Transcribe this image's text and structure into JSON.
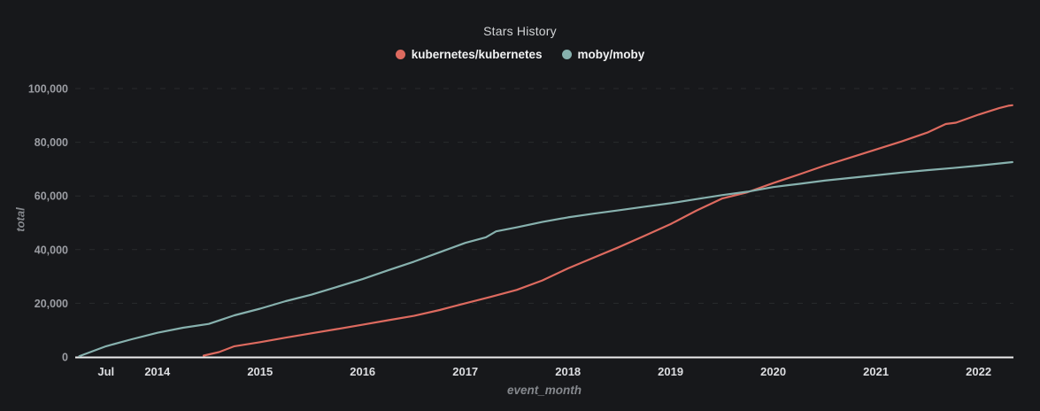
{
  "chart_data": {
    "type": "line",
    "title": "Stars History",
    "xlabel": "event_month",
    "ylabel": "total",
    "legend_position": "top",
    "grid": "horizontal-dashed",
    "x_unit": "decimal_year",
    "xlim": [
      2013.2,
      2022.34
    ],
    "ylim": [
      0,
      100000
    ],
    "x_ticks": [
      {
        "x": 2013.5,
        "label": "Jul"
      },
      {
        "x": 2014,
        "label": "2014"
      },
      {
        "x": 2015,
        "label": "2015"
      },
      {
        "x": 2016,
        "label": "2016"
      },
      {
        "x": 2017,
        "label": "2017"
      },
      {
        "x": 2018,
        "label": "2018"
      },
      {
        "x": 2019,
        "label": "2019"
      },
      {
        "x": 2020,
        "label": "2020"
      },
      {
        "x": 2021,
        "label": "2021"
      },
      {
        "x": 2022,
        "label": "2022"
      }
    ],
    "y_ticks": [
      {
        "v": 0,
        "label": "0"
      },
      {
        "v": 20000,
        "label": "20,000"
      },
      {
        "v": 40000,
        "label": "40,000"
      },
      {
        "v": 60000,
        "label": "60,000"
      },
      {
        "v": 80000,
        "label": "80,000"
      },
      {
        "v": 100000,
        "label": "100,000"
      }
    ],
    "series": [
      {
        "name": "kubernetes/kubernetes",
        "color": "#dd6a5f",
        "points": [
          [
            2014.45,
            500
          ],
          [
            2014.6,
            1800
          ],
          [
            2014.75,
            4000
          ],
          [
            2015.0,
            5500
          ],
          [
            2015.25,
            7200
          ],
          [
            2015.5,
            8800
          ],
          [
            2015.75,
            10400
          ],
          [
            2016.0,
            12000
          ],
          [
            2016.25,
            13700
          ],
          [
            2016.5,
            15300
          ],
          [
            2016.75,
            17500
          ],
          [
            2017.0,
            20000
          ],
          [
            2017.25,
            22400
          ],
          [
            2017.5,
            25000
          ],
          [
            2017.75,
            28500
          ],
          [
            2018.0,
            33000
          ],
          [
            2018.25,
            37000
          ],
          [
            2018.5,
            41000
          ],
          [
            2018.75,
            45200
          ],
          [
            2019.0,
            49500
          ],
          [
            2019.25,
            54500
          ],
          [
            2019.5,
            59000
          ],
          [
            2019.75,
            61400
          ],
          [
            2020.0,
            64800
          ],
          [
            2020.25,
            68000
          ],
          [
            2020.5,
            71300
          ],
          [
            2020.75,
            74300
          ],
          [
            2021.0,
            77300
          ],
          [
            2021.25,
            80300
          ],
          [
            2021.5,
            83600
          ],
          [
            2021.68,
            86800
          ],
          [
            2021.78,
            87300
          ],
          [
            2022.0,
            90300
          ],
          [
            2022.2,
            92700
          ],
          [
            2022.29,
            93600
          ],
          [
            2022.33,
            93800
          ]
        ]
      },
      {
        "name": "moby/moby",
        "color": "#87b1ae",
        "points": [
          [
            2013.24,
            300
          ],
          [
            2013.5,
            4000
          ],
          [
            2013.75,
            6600
          ],
          [
            2014.0,
            9000
          ],
          [
            2014.25,
            10900
          ],
          [
            2014.5,
            12300
          ],
          [
            2014.75,
            15500
          ],
          [
            2015.0,
            18000
          ],
          [
            2015.25,
            20800
          ],
          [
            2015.5,
            23200
          ],
          [
            2015.75,
            26100
          ],
          [
            2016.0,
            29000
          ],
          [
            2016.25,
            32300
          ],
          [
            2016.5,
            35500
          ],
          [
            2016.75,
            39000
          ],
          [
            2017.0,
            42500
          ],
          [
            2017.2,
            44600
          ],
          [
            2017.3,
            46800
          ],
          [
            2017.5,
            48300
          ],
          [
            2017.75,
            50300
          ],
          [
            2018.0,
            52000
          ],
          [
            2018.25,
            53400
          ],
          [
            2018.5,
            54700
          ],
          [
            2018.75,
            56000
          ],
          [
            2019.0,
            57300
          ],
          [
            2019.25,
            58800
          ],
          [
            2019.5,
            60300
          ],
          [
            2019.75,
            61600
          ],
          [
            2020.0,
            63300
          ],
          [
            2020.25,
            64500
          ],
          [
            2020.5,
            65700
          ],
          [
            2020.75,
            66700
          ],
          [
            2021.0,
            67700
          ],
          [
            2021.25,
            68700
          ],
          [
            2021.5,
            69600
          ],
          [
            2021.75,
            70400
          ],
          [
            2022.0,
            71300
          ],
          [
            2022.33,
            72600
          ]
        ]
      }
    ]
  },
  "style": {
    "background": "#17181b",
    "title_color": "#d2d4d6",
    "axis_line_color": "#eceded",
    "grid_color": "rgba(255,255,255,0.08)",
    "x_tick_color": "#dcdde0",
    "y_tick_color": "#9b9da3",
    "axis_name_color": "#85888d",
    "legend_text_color": "#f1f2f3"
  }
}
